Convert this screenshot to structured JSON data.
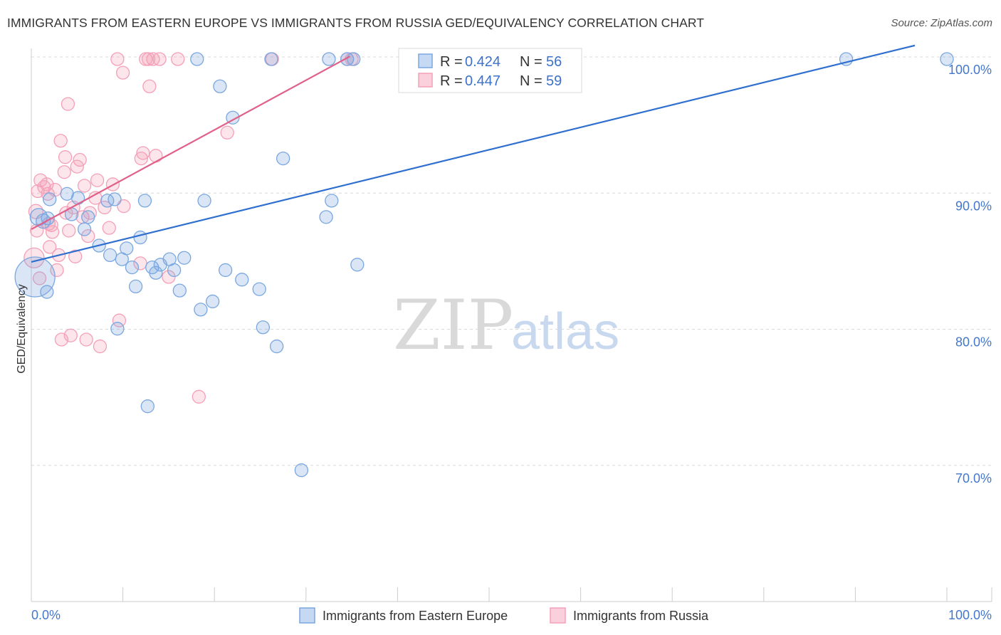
{
  "title": "IMMIGRANTS FROM EASTERN EUROPE VS IMMIGRANTS FROM RUSSIA GED/EQUIVALENCY CORRELATION CHART",
  "source": "Source: ZipAtlas.com",
  "watermark": {
    "zip": "ZIP",
    "atlas": "atlas"
  },
  "colors": {
    "blue": "#7aa7e0",
    "blue_line": "#2f6fd0",
    "pink": "#f4a0b8",
    "pink_line": "#e0608a",
    "tick_text": "#4477cc",
    "grid": "#d8d8d8"
  },
  "legend": {
    "r_label": "R =",
    "n_label": "N =",
    "rows": [
      {
        "r": "0.424",
        "n": "56",
        "color": "blue"
      },
      {
        "r": "0.447",
        "n": "59",
        "color": "pink"
      }
    ]
  },
  "chart_data": {
    "type": "scatter",
    "title": "IMMIGRANTS FROM EASTERN EUROPE VS IMMIGRANTS FROM RUSSIA GED/EQUIVALENCY CORRELATION CHART",
    "xlabel": "",
    "ylabel": "GED/Equivalency",
    "xlim": [
      0,
      100
    ],
    "ylim": [
      60,
      100
    ],
    "x_tick_labels": [
      "0.0%",
      "100.0%"
    ],
    "y_ticks": [
      {
        "value": 70,
        "label": "70.0%"
      },
      {
        "value": 80,
        "label": "80.0%"
      },
      {
        "value": 90,
        "label": "90.0%"
      },
      {
        "value": 100,
        "label": "100.0%"
      }
    ],
    "series": [
      {
        "name": "Immigrants from Eastern Europe",
        "color": "blue",
        "trend": {
          "x0": 0,
          "y0": 85.1,
          "x1": 96.5,
          "y1": 101.0
        },
        "points": [
          [
            0.4,
            84.0,
            28
          ],
          [
            0.8,
            88.4,
            12
          ],
          [
            1.3,
            88.1,
            10
          ],
          [
            1.7,
            82.9,
            9
          ],
          [
            1.8,
            88.3,
            9
          ],
          [
            2.0,
            89.7,
            9
          ],
          [
            3.9,
            90.1,
            9
          ],
          [
            4.4,
            88.6,
            9
          ],
          [
            5.1,
            89.8,
            9
          ],
          [
            5.8,
            87.5,
            9
          ],
          [
            6.2,
            88.4,
            9
          ],
          [
            7.4,
            86.3,
            9
          ],
          [
            8.3,
            89.6,
            9
          ],
          [
            8.6,
            85.6,
            9
          ],
          [
            9.1,
            89.7,
            9
          ],
          [
            9.4,
            80.2,
            9
          ],
          [
            9.9,
            85.3,
            9
          ],
          [
            10.4,
            86.1,
            9
          ],
          [
            11.0,
            84.7,
            9
          ],
          [
            11.4,
            83.3,
            9
          ],
          [
            11.9,
            86.9,
            9
          ],
          [
            12.4,
            89.6,
            9
          ],
          [
            12.7,
            74.5,
            9
          ],
          [
            13.2,
            84.7,
            9
          ],
          [
            13.6,
            84.3,
            9
          ],
          [
            14.1,
            84.9,
            9
          ],
          [
            15.1,
            85.3,
            9
          ],
          [
            15.6,
            84.5,
            9
          ],
          [
            16.2,
            83.0,
            9
          ],
          [
            16.7,
            85.4,
            9
          ],
          [
            18.1,
            100.0,
            9
          ],
          [
            18.5,
            81.6,
            9
          ],
          [
            18.9,
            89.6,
            9
          ],
          [
            19.8,
            82.2,
            9
          ],
          [
            20.6,
            98.0,
            9
          ],
          [
            21.2,
            84.5,
            9
          ],
          [
            22.0,
            95.7,
            9
          ],
          [
            23.0,
            83.8,
            9
          ],
          [
            24.9,
            83.1,
            9
          ],
          [
            25.3,
            80.3,
            9
          ],
          [
            26.2,
            100.0,
            9
          ],
          [
            26.8,
            78.9,
            9
          ],
          [
            27.5,
            92.7,
            9
          ],
          [
            29.5,
            69.8,
            9
          ],
          [
            32.2,
            88.4,
            9
          ],
          [
            32.5,
            100.0,
            9
          ],
          [
            32.8,
            89.6,
            9
          ],
          [
            34.5,
            100.0,
            9
          ],
          [
            35.2,
            100.0,
            9
          ],
          [
            35.6,
            84.9,
            9
          ],
          [
            89.0,
            100.0,
            9
          ],
          [
            100.0,
            100.0,
            9
          ]
        ]
      },
      {
        "name": "Immigrants from Russia",
        "color": "pink",
        "trend": {
          "x0": 0,
          "y0": 87.5,
          "x1": 34.8,
          "y1": 100.2
        },
        "points": [
          [
            0.3,
            85.4,
            14
          ],
          [
            0.5,
            88.8,
            10
          ],
          [
            0.6,
            87.4,
            9
          ],
          [
            0.7,
            90.3,
            9
          ],
          [
            0.9,
            83.9,
            9
          ],
          [
            1.0,
            91.1,
            9
          ],
          [
            1.4,
            90.6,
            9
          ],
          [
            1.7,
            90.8,
            9
          ],
          [
            1.8,
            90.1,
            9
          ],
          [
            1.9,
            87.9,
            9
          ],
          [
            2.0,
            86.2,
            9
          ],
          [
            2.2,
            87.8,
            9
          ],
          [
            2.3,
            87.3,
            9
          ],
          [
            2.6,
            90.4,
            9
          ],
          [
            2.8,
            84.5,
            9
          ],
          [
            3.0,
            85.6,
            9
          ],
          [
            3.2,
            94.0,
            9
          ],
          [
            3.3,
            79.4,
            9
          ],
          [
            3.6,
            91.7,
            9
          ],
          [
            3.7,
            92.8,
            9
          ],
          [
            3.8,
            88.7,
            9
          ],
          [
            4.0,
            96.7,
            9
          ],
          [
            4.1,
            87.4,
            9
          ],
          [
            4.3,
            79.7,
            9
          ],
          [
            4.6,
            89.1,
            9
          ],
          [
            4.8,
            85.5,
            9
          ],
          [
            5.0,
            92.1,
            9
          ],
          [
            5.3,
            92.6,
            9
          ],
          [
            5.6,
            88.4,
            9
          ],
          [
            5.8,
            90.7,
            9
          ],
          [
            6.0,
            79.4,
            9
          ],
          [
            6.2,
            87.0,
            9
          ],
          [
            6.4,
            88.7,
            9
          ],
          [
            7.0,
            89.8,
            9
          ],
          [
            7.2,
            91.1,
            9
          ],
          [
            7.5,
            78.9,
            9
          ],
          [
            8.0,
            89.1,
            9
          ],
          [
            8.5,
            87.6,
            9
          ],
          [
            8.9,
            90.8,
            9
          ],
          [
            9.4,
            100.0,
            9
          ],
          [
            9.6,
            80.8,
            9
          ],
          [
            10.0,
            99.0,
            9
          ],
          [
            10.1,
            89.2,
            9
          ],
          [
            11.9,
            85.0,
            9
          ],
          [
            12.0,
            92.7,
            9
          ],
          [
            12.2,
            93.1,
            9
          ],
          [
            12.5,
            100.0,
            9
          ],
          [
            12.8,
            100.0,
            9
          ],
          [
            12.9,
            98.0,
            9
          ],
          [
            13.3,
            100.0,
            9
          ],
          [
            13.6,
            92.9,
            9
          ],
          [
            14.0,
            100.0,
            9
          ],
          [
            15.0,
            84.0,
            9
          ],
          [
            16.0,
            100.0,
            9
          ],
          [
            18.3,
            75.2,
            9
          ],
          [
            21.4,
            94.6,
            9
          ],
          [
            26.3,
            100.0,
            9
          ],
          [
            34.5,
            100.0,
            9
          ],
          [
            35.0,
            100.0,
            9
          ]
        ]
      }
    ],
    "legend_position": "bottom-center"
  }
}
